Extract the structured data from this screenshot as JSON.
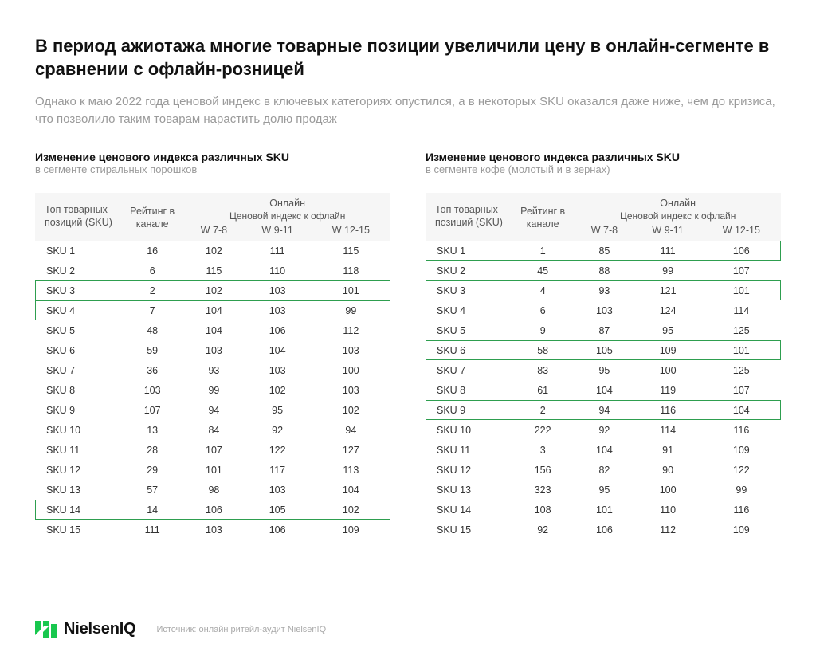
{
  "title": "В период ажиотажа многие товарные позиции увеличили цену в онлайн-сегменте в сравнении с офлайн-розницей",
  "subtitle": "Однако к маю 2022 года ценовой индекс в ключевых категориях опустился, а в некоторых SKU оказался даже ниже, чем до кризиса, что позволило таким товарам нарастить долю продаж",
  "tables": {
    "header": {
      "sku_label": "Топ товарных позиций (SKU)",
      "rating_label": "Рейтинг в канале",
      "online_label": "Онлайн",
      "index_label": "Ценовой индекс к офлайн",
      "period_cols": [
        "W 7-8",
        "W 9-11",
        "W 12-15"
      ]
    },
    "left": {
      "title": "Изменение ценового индекса различных SKU",
      "subtitle": "в сегменте стиральных порошков",
      "highlight_rows": [
        2,
        3,
        13
      ],
      "rows": [
        {
          "sku": "SKU 1",
          "rating": 16,
          "w78": 102,
          "w911": 111,
          "w1215": 115
        },
        {
          "sku": "SKU 2",
          "rating": 6,
          "w78": 115,
          "w911": 110,
          "w1215": 118
        },
        {
          "sku": "SKU 3",
          "rating": 2,
          "w78": 102,
          "w911": 103,
          "w1215": 101
        },
        {
          "sku": "SKU 4",
          "rating": 7,
          "w78": 104,
          "w911": 103,
          "w1215": 99
        },
        {
          "sku": "SKU 5",
          "rating": 48,
          "w78": 104,
          "w911": 106,
          "w1215": 112
        },
        {
          "sku": "SKU 6",
          "rating": 59,
          "w78": 103,
          "w911": 104,
          "w1215": 103
        },
        {
          "sku": "SKU 7",
          "rating": 36,
          "w78": 93,
          "w911": 103,
          "w1215": 100
        },
        {
          "sku": "SKU 8",
          "rating": 103,
          "w78": 99,
          "w911": 102,
          "w1215": 103
        },
        {
          "sku": "SKU 9",
          "rating": 107,
          "w78": 94,
          "w911": 95,
          "w1215": 102
        },
        {
          "sku": "SKU 10",
          "rating": 13,
          "w78": 84,
          "w911": 92,
          "w1215": 94
        },
        {
          "sku": "SKU 11",
          "rating": 28,
          "w78": 107,
          "w911": 122,
          "w1215": 127
        },
        {
          "sku": "SKU 12",
          "rating": 29,
          "w78": 101,
          "w911": 117,
          "w1215": 113
        },
        {
          "sku": "SKU 13",
          "rating": 57,
          "w78": 98,
          "w911": 103,
          "w1215": 104
        },
        {
          "sku": "SKU 14",
          "rating": 14,
          "w78": 106,
          "w911": 105,
          "w1215": 102
        },
        {
          "sku": "SKU 15",
          "rating": 111,
          "w78": 103,
          "w911": 106,
          "w1215": 109
        }
      ]
    },
    "right": {
      "title": "Изменение ценового индекса различных SKU",
      "subtitle": "в сегменте кофе (молотый и в зернах)",
      "highlight_rows": [
        0,
        2,
        5,
        8
      ],
      "rows": [
        {
          "sku": "SKU 1",
          "rating": 1,
          "w78": 85,
          "w911": 111,
          "w1215": 106
        },
        {
          "sku": "SKU 2",
          "rating": 45,
          "w78": 88,
          "w911": 99,
          "w1215": 107
        },
        {
          "sku": "SKU 3",
          "rating": 4,
          "w78": 93,
          "w911": 121,
          "w1215": 101
        },
        {
          "sku": "SKU 4",
          "rating": 6,
          "w78": 103,
          "w911": 124,
          "w1215": 114
        },
        {
          "sku": "SKU 5",
          "rating": 9,
          "w78": 87,
          "w911": 95,
          "w1215": 125
        },
        {
          "sku": "SKU 6",
          "rating": 58,
          "w78": 105,
          "w911": 109,
          "w1215": 101
        },
        {
          "sku": "SKU 7",
          "rating": 83,
          "w78": 95,
          "w911": 100,
          "w1215": 125
        },
        {
          "sku": "SKU 8",
          "rating": 61,
          "w78": 104,
          "w911": 119,
          "w1215": 107
        },
        {
          "sku": "SKU 9",
          "rating": 2,
          "w78": 94,
          "w911": 116,
          "w1215": 104
        },
        {
          "sku": "SKU 10",
          "rating": 222,
          "w78": 92,
          "w911": 114,
          "w1215": 116
        },
        {
          "sku": "SKU 11",
          "rating": 3,
          "w78": 104,
          "w911": 91,
          "w1215": 109
        },
        {
          "sku": "SKU 12",
          "rating": 156,
          "w78": 82,
          "w911": 90,
          "w1215": 122
        },
        {
          "sku": "SKU 13",
          "rating": 323,
          "w78": 95,
          "w911": 100,
          "w1215": 99
        },
        {
          "sku": "SKU 14",
          "rating": 108,
          "w78": 101,
          "w911": 110,
          "w1215": 116
        },
        {
          "sku": "SKU 15",
          "rating": 92,
          "w78": 106,
          "w911": 112,
          "w1215": 109
        }
      ]
    }
  },
  "footer": {
    "brand": "NielsenIQ",
    "source": "Источник: онлайн ритейл-аудит NielsenIQ",
    "logo_color": "#18c74e"
  },
  "style": {
    "highlight_border": "#2e9e4f",
    "header_bg": "#f6f6f6",
    "text_muted": "#9a9a9a"
  }
}
